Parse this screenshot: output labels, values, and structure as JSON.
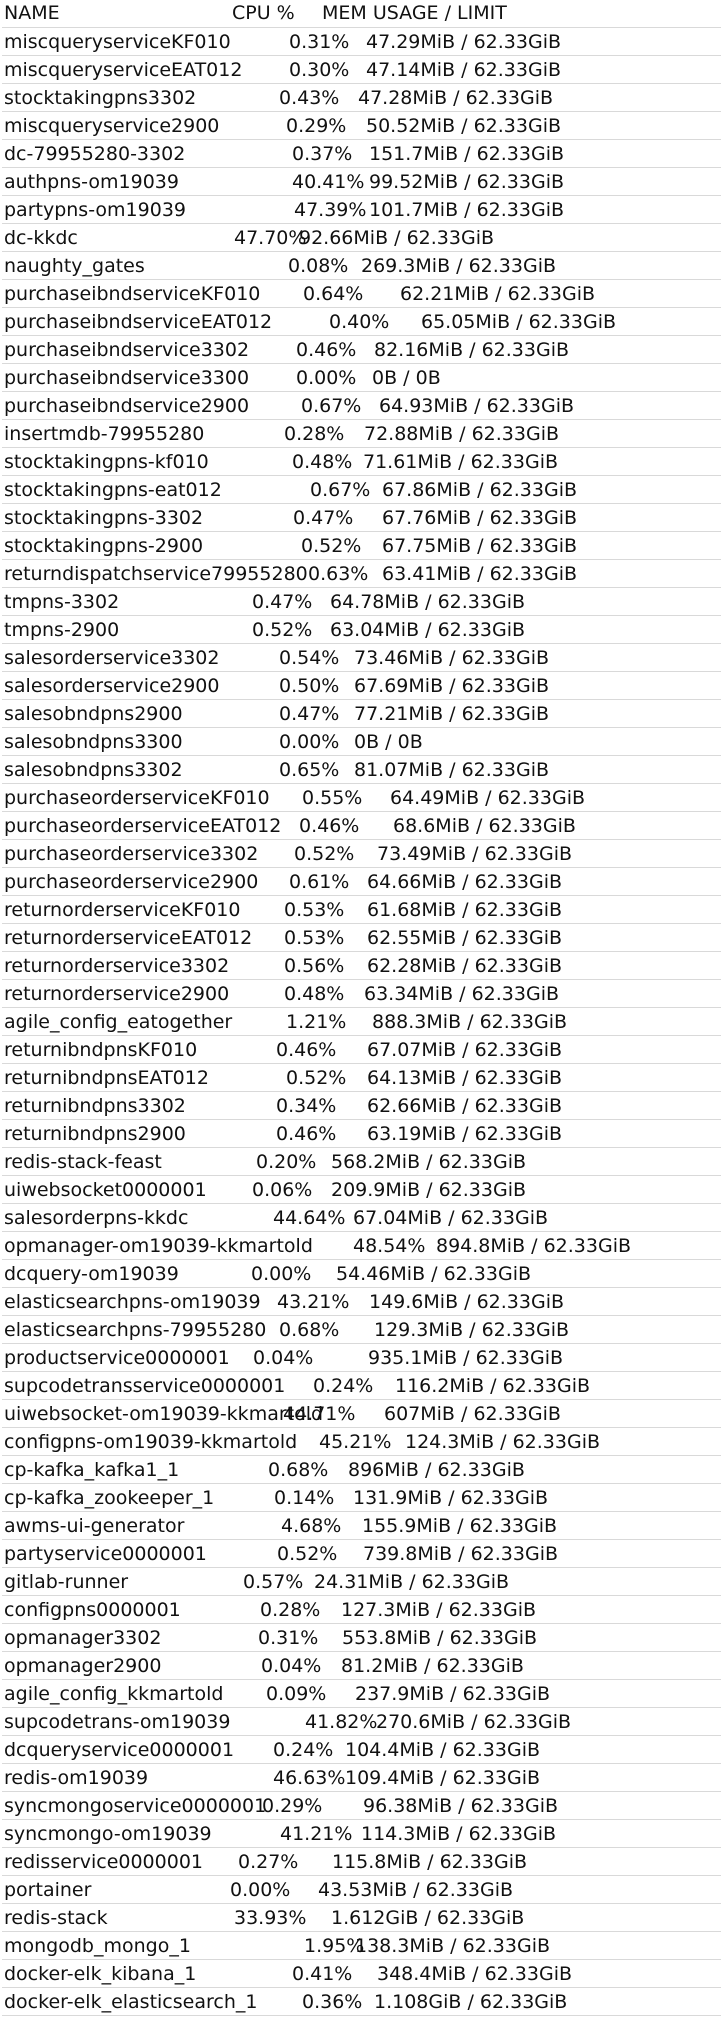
{
  "header": {
    "name": "NAME",
    "cpu": "CPU %",
    "mem": "MEM USAGE / LIMIT"
  },
  "rows": [
    {
      "name": "miscqueryserviceKF010",
      "cpu": "0.31%",
      "mem": "47.29MiB / 62.33GiB"
    },
    {
      "name": "miscqueryserviceEAT012",
      "cpu": "0.30%",
      "mem": "47.14MiB / 62.33GiB"
    },
    {
      "name": "stocktakingpns3302",
      "cpu": "0.43%",
      "mem": "47.28MiB / 62.33GiB"
    },
    {
      "name": "miscqueryservice2900",
      "cpu": "0.29%",
      "mem": "50.52MiB / 62.33GiB"
    },
    {
      "name": "dc-79955280-3302",
      "cpu": "0.37%",
      "mem": "151.7MiB / 62.33GiB"
    },
    {
      "name": "authpns-om19039",
      "cpu": "40.41%",
      "mem": "99.52MiB / 62.33GiB"
    },
    {
      "name": "partypns-om19039",
      "cpu": "47.39%",
      "mem": "101.7MiB / 62.33GiB"
    },
    {
      "name": "dc-kkdc",
      "cpu": "47.70%",
      "mem": "92.66MiB / 62.33GiB"
    },
    {
      "name": "naughty_gates",
      "cpu": "0.08%",
      "mem": "269.3MiB / 62.33GiB"
    },
    {
      "name": "purchaseibndserviceKF010",
      "cpu": "0.64%",
      "mem": "62.21MiB / 62.33GiB"
    },
    {
      "name": "purchaseibndserviceEAT012",
      "cpu": "0.40%",
      "mem": "65.05MiB / 62.33GiB"
    },
    {
      "name": "purchaseibndservice3302",
      "cpu": "0.46%",
      "mem": "82.16MiB / 62.33GiB"
    },
    {
      "name": "purchaseibndservice3300",
      "cpu": "0.00%",
      "mem": "0B / 0B"
    },
    {
      "name": "purchaseibndservice2900",
      "cpu": "0.67%",
      "mem": "64.93MiB / 62.33GiB"
    },
    {
      "name": "insertmdb-79955280",
      "cpu": "0.28%",
      "mem": "72.88MiB / 62.33GiB"
    },
    {
      "name": "stocktakingpns-kf010",
      "cpu": "0.48%",
      "mem": "71.61MiB / 62.33GiB"
    },
    {
      "name": "stocktakingpns-eat012",
      "cpu": "0.67%",
      "mem": "67.86MiB / 62.33GiB"
    },
    {
      "name": "stocktakingpns-3302",
      "cpu": "0.47%",
      "mem": "67.76MiB / 62.33GiB"
    },
    {
      "name": "stocktakingpns-2900",
      "cpu": "0.52%",
      "mem": "67.75MiB / 62.33GiB"
    },
    {
      "name": "returndispatchservice79955280",
      "cpu": "0.63%",
      "mem": "63.41MiB / 62.33GiB"
    },
    {
      "name": "tmpns-3302",
      "cpu": "0.47%",
      "mem": "64.78MiB / 62.33GiB"
    },
    {
      "name": "tmpns-2900",
      "cpu": "0.52%",
      "mem": "63.04MiB / 62.33GiB"
    },
    {
      "name": "salesorderservice3302",
      "cpu": "0.54%",
      "mem": "73.46MiB / 62.33GiB"
    },
    {
      "name": "salesorderservice2900",
      "cpu": "0.50%",
      "mem": "67.69MiB / 62.33GiB"
    },
    {
      "name": "salesobndpns2900",
      "cpu": "0.47%",
      "mem": "77.21MiB / 62.33GiB"
    },
    {
      "name": "salesobndpns3300",
      "cpu": "0.00%",
      "mem": "0B / 0B"
    },
    {
      "name": "salesobndpns3302",
      "cpu": "0.65%",
      "mem": "81.07MiB / 62.33GiB"
    },
    {
      "name": "purchaseorderserviceKF010",
      "cpu": "0.55%",
      "mem": "64.49MiB / 62.33GiB"
    },
    {
      "name": "purchaseorderserviceEAT012",
      "cpu": "0.46%",
      "mem": "68.6MiB / 62.33GiB"
    },
    {
      "name": "purchaseorderservice3302",
      "cpu": "0.52%",
      "mem": "73.49MiB / 62.33GiB"
    },
    {
      "name": "purchaseorderservice2900",
      "cpu": "0.61%",
      "mem": "64.66MiB / 62.33GiB"
    },
    {
      "name": "returnorderserviceKF010",
      "cpu": "0.53%",
      "mem": "61.68MiB / 62.33GiB"
    },
    {
      "name": "returnorderserviceEAT012",
      "cpu": "0.53%",
      "mem": "62.55MiB / 62.33GiB"
    },
    {
      "name": "returnorderservice3302",
      "cpu": "0.56%",
      "mem": "62.28MiB / 62.33GiB"
    },
    {
      "name": "returnorderservice2900",
      "cpu": "0.48%",
      "mem": "63.34MiB / 62.33GiB"
    },
    {
      "name": "agile_config_eatogether",
      "cpu": "1.21%",
      "mem": "888.3MiB / 62.33GiB"
    },
    {
      "name": "returnibndpnsKF010",
      "cpu": "0.46%",
      "mem": "67.07MiB / 62.33GiB"
    },
    {
      "name": "returnibndpnsEAT012",
      "cpu": "0.52%",
      "mem": "64.13MiB / 62.33GiB"
    },
    {
      "name": "returnibndpns3302",
      "cpu": "0.34%",
      "mem": "62.66MiB / 62.33GiB"
    },
    {
      "name": "returnibndpns2900",
      "cpu": "0.46%",
      "mem": "63.19MiB / 62.33GiB"
    },
    {
      "name": "redis-stack-feast",
      "cpu": "0.20%",
      "mem": "568.2MiB / 62.33GiB"
    },
    {
      "name": "uiwebsocket0000001",
      "cpu": "0.06%",
      "mem": "209.9MiB / 62.33GiB"
    },
    {
      "name": "salesorderpns-kkdc",
      "cpu": "44.64%",
      "mem": "67.04MiB / 62.33GiB"
    },
    {
      "name": "opmanager-om19039-kkmartold",
      "cpu": "48.54%",
      "mem": "894.8MiB / 62.33GiB"
    },
    {
      "name": "dcquery-om19039",
      "cpu": "0.00%",
      "mem": "54.46MiB / 62.33GiB"
    },
    {
      "name": "elasticsearchpns-om19039",
      "cpu": "43.21%",
      "mem": "149.6MiB / 62.33GiB"
    },
    {
      "name": "elasticsearchpns-79955280",
      "cpu": "0.68%",
      "mem": "129.3MiB / 62.33GiB"
    },
    {
      "name": "productservice0000001",
      "cpu": "0.04%",
      "mem": "935.1MiB / 62.33GiB"
    },
    {
      "name": "supcodetransservice0000001",
      "cpu": "0.24%",
      "mem": "116.2MiB / 62.33GiB"
    },
    {
      "name": "uiwebsocket-om19039-kkmartold",
      "cpu": "44.71%",
      "mem": "607MiB / 62.33GiB"
    },
    {
      "name": "configpns-om19039-kkmartold",
      "cpu": "45.21%",
      "mem": "124.3MiB / 62.33GiB"
    },
    {
      "name": "cp-kafka_kafka1_1",
      "cpu": "0.68%",
      "mem": "896MiB / 62.33GiB"
    },
    {
      "name": "cp-kafka_zookeeper_1",
      "cpu": "0.14%",
      "mem": "131.9MiB / 62.33GiB"
    },
    {
      "name": "awms-ui-generator",
      "cpu": "4.68%",
      "mem": "155.9MiB / 62.33GiB"
    },
    {
      "name": "partyservice0000001",
      "cpu": "0.52%",
      "mem": "739.8MiB / 62.33GiB"
    },
    {
      "name": "gitlab-runner",
      "cpu": "0.57%",
      "mem": "24.31MiB / 62.33GiB"
    },
    {
      "name": "configpns0000001",
      "cpu": "0.28%",
      "mem": "127.3MiB / 62.33GiB"
    },
    {
      "name": "opmanager3302",
      "cpu": "0.31%",
      "mem": "553.8MiB / 62.33GiB"
    },
    {
      "name": "opmanager2900",
      "cpu": "0.04%",
      "mem": "81.2MiB / 62.33GiB"
    },
    {
      "name": "agile_config_kkmartold",
      "cpu": "0.09%",
      "mem": "237.9MiB / 62.33GiB"
    },
    {
      "name": "supcodetrans-om19039",
      "cpu": "41.82%",
      "mem": "270.6MiB / 62.33GiB"
    },
    {
      "name": "dcqueryservice0000001",
      "cpu": "0.24%",
      "mem": "104.4MiB / 62.33GiB"
    },
    {
      "name": "redis-om19039",
      "cpu": "46.63%",
      "mem": "109.4MiB / 62.33GiB"
    },
    {
      "name": "syncmongoservice0000001",
      "cpu": "0.29%",
      "mem": "96.38MiB / 62.33GiB"
    },
    {
      "name": "syncmongo-om19039",
      "cpu": "41.21%",
      "mem": "114.3MiB / 62.33GiB"
    },
    {
      "name": "redisservice0000001",
      "cpu": "0.27%",
      "mem": "115.8MiB / 62.33GiB"
    },
    {
      "name": "portainer",
      "cpu": "0.00%",
      "mem": "43.53MiB / 62.33GiB"
    },
    {
      "name": "redis-stack",
      "cpu": "33.93%",
      "mem": "1.612GiB / 62.33GiB"
    },
    {
      "name": "mongodb_mongo_1",
      "cpu": "1.95%",
      "mem": "138.3MiB / 62.33GiB"
    },
    {
      "name": "docker-elk_kibana_1",
      "cpu": "0.41%",
      "mem": "348.4MiB / 62.33GiB"
    },
    {
      "name": "docker-elk_elasticsearch_1",
      "cpu": "0.36%",
      "mem": "1.108GiB / 62.33GiB"
    }
  ]
}
